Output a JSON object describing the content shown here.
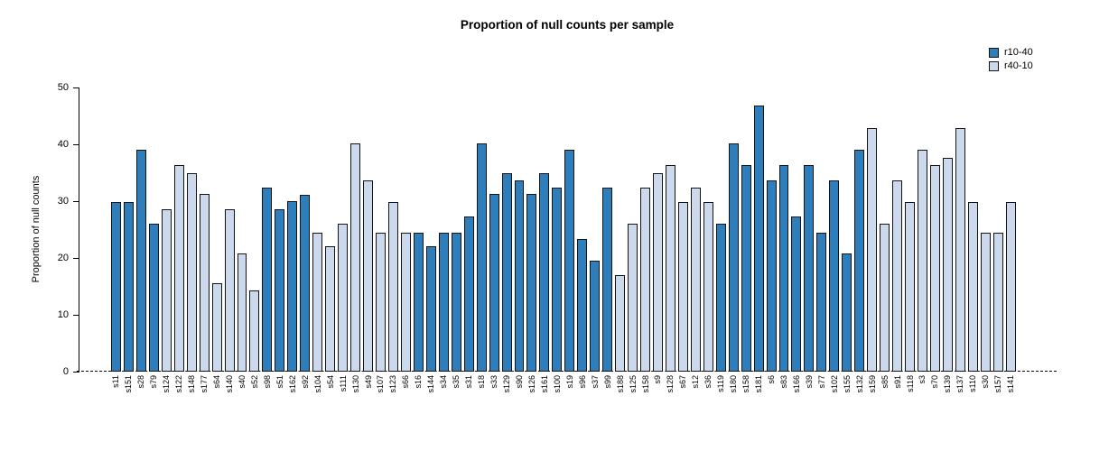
{
  "chart_data": {
    "type": "bar",
    "title": "Proportion of null counts per sample",
    "ylabel": "Proportion of null counts",
    "xlabel": "",
    "ylim": [
      0,
      50
    ],
    "yticks": [
      0,
      10,
      20,
      30,
      40,
      50
    ],
    "grid": false,
    "legend_position": "top-right",
    "zero_line_style": "dashed",
    "legend": [
      {
        "label": "r10-40",
        "color": "#2e7ebc"
      },
      {
        "label": "r40-10",
        "color": "#ccd9ec"
      }
    ],
    "bars": [
      {
        "sample": "s11",
        "value": 29.8,
        "group": "r10-40"
      },
      {
        "sample": "s151",
        "value": 29.8,
        "group": "r10-40"
      },
      {
        "sample": "s28",
        "value": 39.0,
        "group": "r10-40"
      },
      {
        "sample": "s79",
        "value": 26.0,
        "group": "r10-40"
      },
      {
        "sample": "s124",
        "value": 28.5,
        "group": "r40-10"
      },
      {
        "sample": "s122",
        "value": 36.3,
        "group": "r40-10"
      },
      {
        "sample": "s148",
        "value": 35.0,
        "group": "r40-10"
      },
      {
        "sample": "s177",
        "value": 31.2,
        "group": "r40-10"
      },
      {
        "sample": "s64",
        "value": 15.6,
        "group": "r40-10"
      },
      {
        "sample": "s140",
        "value": 28.5,
        "group": "r40-10"
      },
      {
        "sample": "s40",
        "value": 20.8,
        "group": "r40-10"
      },
      {
        "sample": "s52",
        "value": 14.3,
        "group": "r40-10"
      },
      {
        "sample": "s98",
        "value": 32.4,
        "group": "r10-40"
      },
      {
        "sample": "s51",
        "value": 28.5,
        "group": "r10-40"
      },
      {
        "sample": "s162",
        "value": 30.0,
        "group": "r10-40"
      },
      {
        "sample": "s92",
        "value": 31.1,
        "group": "r10-40"
      },
      {
        "sample": "s104",
        "value": 24.5,
        "group": "r40-10"
      },
      {
        "sample": "s54",
        "value": 22.0,
        "group": "r40-10"
      },
      {
        "sample": "s111",
        "value": 26.0,
        "group": "r40-10"
      },
      {
        "sample": "s130",
        "value": 40.1,
        "group": "r40-10"
      },
      {
        "sample": "s49",
        "value": 33.7,
        "group": "r40-10"
      },
      {
        "sample": "s107",
        "value": 24.5,
        "group": "r40-10"
      },
      {
        "sample": "s123",
        "value": 29.8,
        "group": "r40-10"
      },
      {
        "sample": "s66",
        "value": 24.5,
        "group": "r40-10"
      },
      {
        "sample": "s16",
        "value": 24.5,
        "group": "r10-40"
      },
      {
        "sample": "s144",
        "value": 22.0,
        "group": "r10-40"
      },
      {
        "sample": "s34",
        "value": 24.5,
        "group": "r10-40"
      },
      {
        "sample": "s35",
        "value": 24.5,
        "group": "r10-40"
      },
      {
        "sample": "s31",
        "value": 27.3,
        "group": "r10-40"
      },
      {
        "sample": "s18",
        "value": 40.1,
        "group": "r10-40"
      },
      {
        "sample": "s33",
        "value": 31.2,
        "group": "r10-40"
      },
      {
        "sample": "s129",
        "value": 35.0,
        "group": "r10-40"
      },
      {
        "sample": "s90",
        "value": 33.7,
        "group": "r10-40"
      },
      {
        "sample": "s126",
        "value": 31.2,
        "group": "r10-40"
      },
      {
        "sample": "s161",
        "value": 35.0,
        "group": "r10-40"
      },
      {
        "sample": "s100",
        "value": 32.4,
        "group": "r10-40"
      },
      {
        "sample": "s19",
        "value": 39.0,
        "group": "r10-40"
      },
      {
        "sample": "s96",
        "value": 23.4,
        "group": "r10-40"
      },
      {
        "sample": "s37",
        "value": 19.5,
        "group": "r10-40"
      },
      {
        "sample": "s99",
        "value": 32.4,
        "group": "r10-40"
      },
      {
        "sample": "s188",
        "value": 17.0,
        "group": "r40-10"
      },
      {
        "sample": "s125",
        "value": 26.0,
        "group": "r40-10"
      },
      {
        "sample": "s158",
        "value": 32.4,
        "group": "r40-10"
      },
      {
        "sample": "s9",
        "value": 35.0,
        "group": "r40-10"
      },
      {
        "sample": "s128",
        "value": 36.3,
        "group": "r40-10"
      },
      {
        "sample": "s67",
        "value": 29.8,
        "group": "r40-10"
      },
      {
        "sample": "s12",
        "value": 32.4,
        "group": "r40-10"
      },
      {
        "sample": "s36",
        "value": 29.8,
        "group": "r40-10"
      },
      {
        "sample": "s119",
        "value": 26.0,
        "group": "r10-40"
      },
      {
        "sample": "s180",
        "value": 40.1,
        "group": "r10-40"
      },
      {
        "sample": "s158",
        "value": 36.3,
        "group": "r10-40"
      },
      {
        "sample": "s181",
        "value": 46.8,
        "group": "r10-40"
      },
      {
        "sample": "s6",
        "value": 33.7,
        "group": "r10-40"
      },
      {
        "sample": "s83",
        "value": 36.3,
        "group": "r10-40"
      },
      {
        "sample": "s166",
        "value": 27.3,
        "group": "r10-40"
      },
      {
        "sample": "s39",
        "value": 36.3,
        "group": "r10-40"
      },
      {
        "sample": "s77",
        "value": 24.5,
        "group": "r10-40"
      },
      {
        "sample": "s102",
        "value": 33.7,
        "group": "r10-40"
      },
      {
        "sample": "s155",
        "value": 20.8,
        "group": "r10-40"
      },
      {
        "sample": "s132",
        "value": 39.0,
        "group": "r10-40"
      },
      {
        "sample": "s159",
        "value": 42.8,
        "group": "r40-10"
      },
      {
        "sample": "s85",
        "value": 26.0,
        "group": "r40-10"
      },
      {
        "sample": "s91",
        "value": 33.7,
        "group": "r40-10"
      },
      {
        "sample": "s118",
        "value": 29.8,
        "group": "r40-10"
      },
      {
        "sample": "s3",
        "value": 39.0,
        "group": "r40-10"
      },
      {
        "sample": "s70",
        "value": 36.3,
        "group": "r40-10"
      },
      {
        "sample": "s139",
        "value": 37.6,
        "group": "r40-10"
      },
      {
        "sample": "s137",
        "value": 42.8,
        "group": "r40-10"
      },
      {
        "sample": "s110",
        "value": 29.8,
        "group": "r40-10"
      },
      {
        "sample": "s30",
        "value": 24.5,
        "group": "r40-10"
      },
      {
        "sample": "s157",
        "value": 24.5,
        "group": "r40-10"
      },
      {
        "sample": "s141",
        "value": 29.8,
        "group": "r40-10"
      }
    ]
  }
}
